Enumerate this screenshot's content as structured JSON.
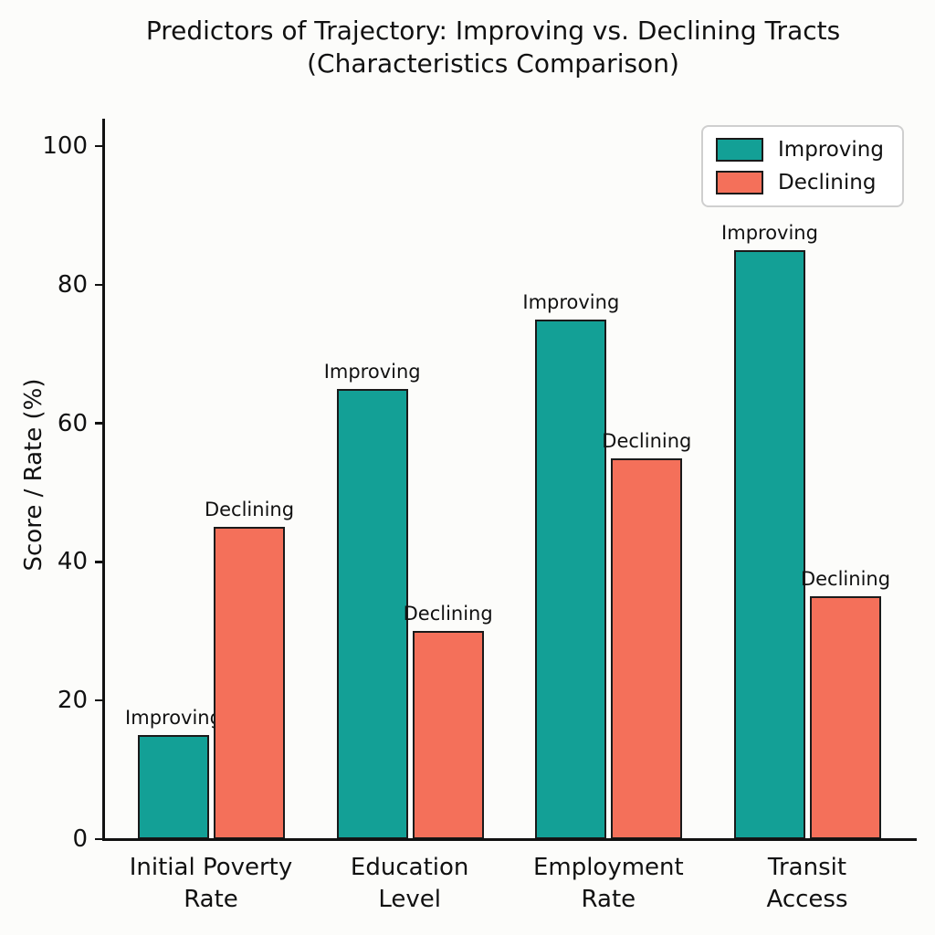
{
  "chart_data": {
    "type": "bar",
    "title": "Predictors of Trajectory: Improving vs. Declining Tracts\n(Characteristics Comparison)",
    "ylabel": "Score / Rate (%)",
    "categories": [
      "Initial Poverty\nRate",
      "Education\nLevel",
      "Employment\nRate",
      "Transit\nAccess"
    ],
    "series": [
      {
        "name": "Improving",
        "color": "#13a096",
        "values": [
          15,
          65,
          75,
          85
        ]
      },
      {
        "name": "Declining",
        "color": "#f4705a",
        "values": [
          45,
          30,
          55,
          35
        ]
      }
    ],
    "bar_annotations": "each bar is labeled above with its series name",
    "ylim": [
      0,
      100
    ],
    "yticks": [
      0,
      20,
      40,
      60,
      80,
      100
    ],
    "legend_position": "upper right",
    "grid": false,
    "bar_edge_color": "#1a1a1a",
    "axis_color": "#111111",
    "background_color": "#fcfcfa",
    "text_color": "#111111"
  }
}
